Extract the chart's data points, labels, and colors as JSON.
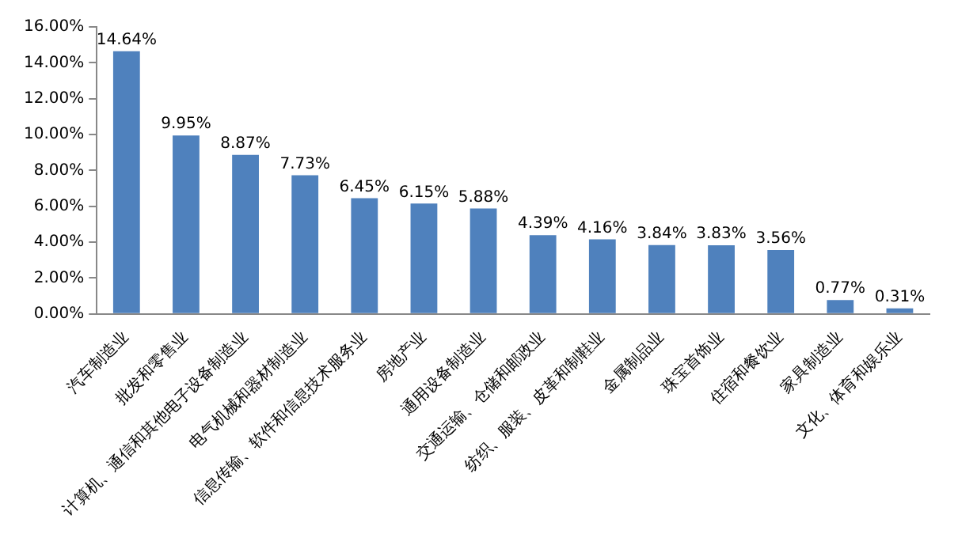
{
  "chart_data": {
    "type": "bar",
    "categories": [
      "汽车制造业",
      "批发和零售业",
      "计算机、通信和其他电子设备制造业",
      "电气机械和器材制造业",
      "信息传输、软件和信息技术服务业",
      "房地产业",
      "通用设备制造业",
      "交通运输、仓储和邮政业",
      "纺织、服装、皮革和制鞋业",
      "金属制品业",
      "珠宝首饰业",
      "住宿和餐饮业",
      "家具制造业",
      "文化、体育和娱乐业"
    ],
    "values": [
      14.64,
      9.95,
      8.87,
      7.73,
      6.45,
      6.15,
      5.88,
      4.39,
      4.16,
      3.84,
      3.83,
      3.56,
      0.77,
      0.31
    ],
    "value_labels": [
      "14.64%",
      "9.95%",
      "8.87%",
      "7.73%",
      "6.45%",
      "6.15%",
      "5.88%",
      "4.39%",
      "4.16%",
      "3.84%",
      "3.83%",
      "3.56%",
      "0.77%",
      "0.31%"
    ],
    "color": "#4f81bd",
    "ylim": [
      0,
      16
    ],
    "yticks": [
      {
        "value": 0,
        "label": "0.00%"
      },
      {
        "value": 2,
        "label": "2.00%"
      },
      {
        "value": 4,
        "label": "4.00%"
      },
      {
        "value": 6,
        "label": "6.00%"
      },
      {
        "value": 8,
        "label": "8.00%"
      },
      {
        "value": 10,
        "label": "10.00%"
      },
      {
        "value": 12,
        "label": "12.00%"
      },
      {
        "value": 14,
        "label": "14.00%"
      },
      {
        "value": 16,
        "label": "16.00%"
      }
    ],
    "grid": false,
    "legend": false
  }
}
